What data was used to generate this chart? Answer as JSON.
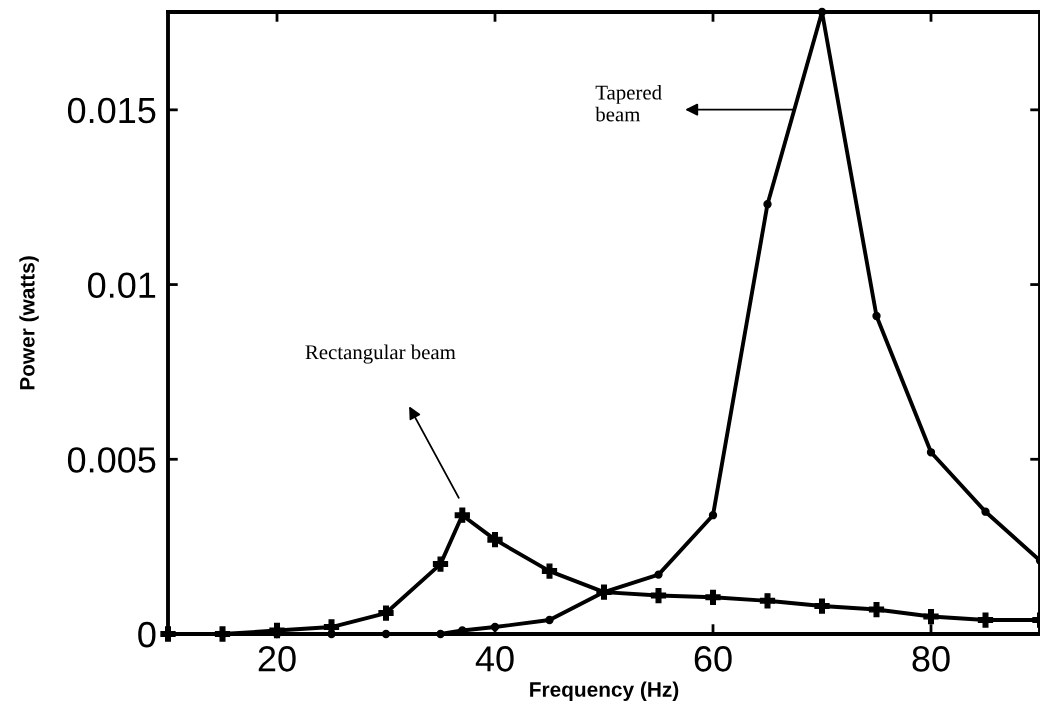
{
  "chart_data": {
    "type": "line",
    "xlabel": "Frequency (Hz)",
    "ylabel": "Power (watts)",
    "xlim": [
      10,
      90
    ],
    "xticks": [
      20,
      40,
      60,
      80
    ],
    "ylim": [
      0,
      0.0178
    ],
    "yticks": [
      0,
      0.005,
      0.01,
      0.015
    ],
    "grid": false,
    "line_style": "solid",
    "annotations": [
      "Rectangular beam",
      "Tapered\nbeam"
    ],
    "series": [
      {
        "color": "#000000",
        "marker": "cross",
        "x": [
          10,
          15,
          20,
          25,
          30,
          35,
          37,
          40,
          45,
          50,
          55,
          60,
          65,
          70,
          75,
          80,
          85,
          90
        ],
        "values": [
          0,
          0,
          0.0001,
          0.0002,
          0.0006,
          0.002,
          0.0034,
          0.0027,
          0.0018,
          0.0012,
          0.0011,
          0.00105,
          0.00095,
          0.0008,
          0.0007,
          0.0005,
          0.0004,
          0.0004
        ]
      },
      {
        "color": "#000000",
        "marker": "circle",
        "x": [
          10,
          15,
          20,
          25,
          30,
          35,
          37,
          40,
          45,
          50,
          55,
          60,
          65,
          70,
          75,
          80,
          85,
          90
        ],
        "values": [
          0,
          0,
          0,
          0,
          0,
          0,
          0.0001,
          0.0002,
          0.0004,
          0.0012,
          0.0017,
          0.0034,
          0.0123,
          0.0178,
          0.0091,
          0.0052,
          0.0035,
          0.0021
        ]
      }
    ]
  }
}
